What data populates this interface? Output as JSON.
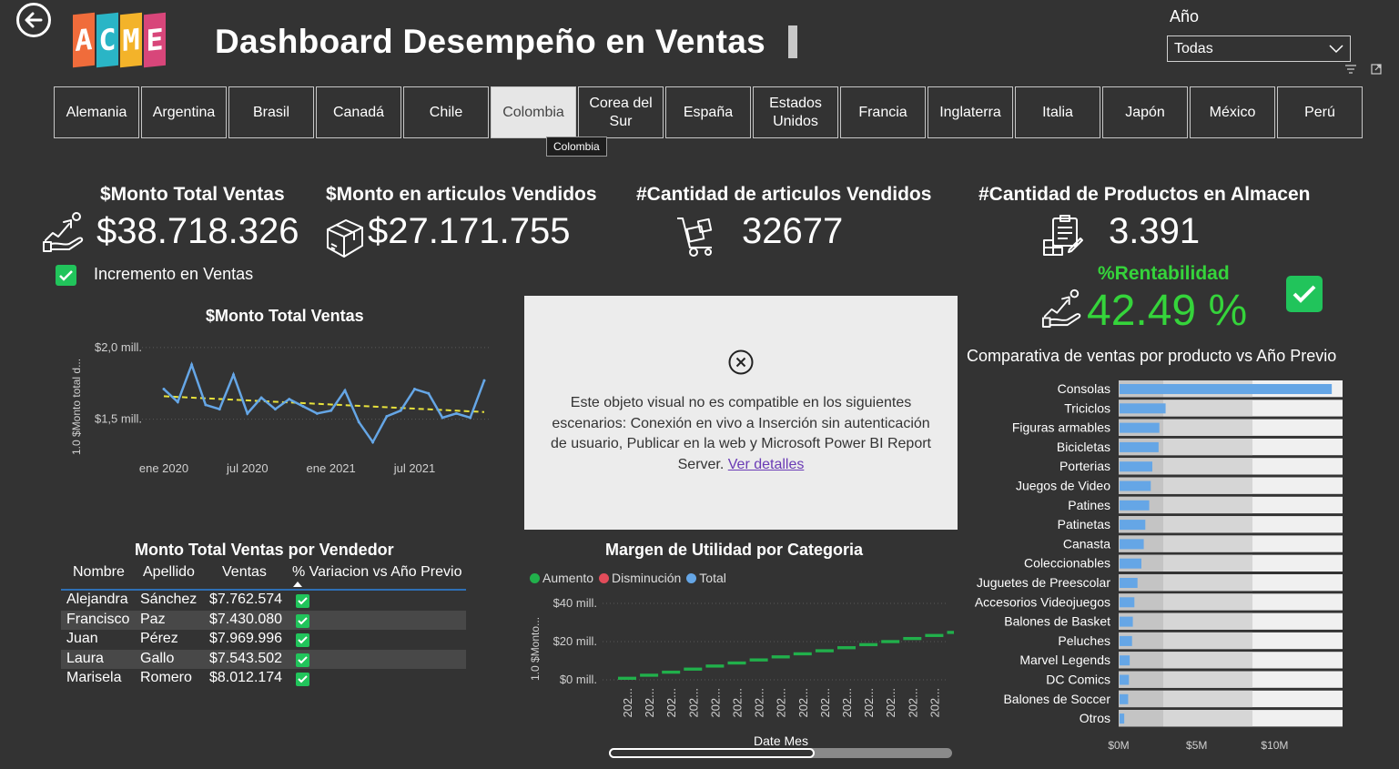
{
  "header": {
    "title": "Dashboard Desempeño en Ventas",
    "logo_letters": [
      "A",
      "C",
      "M",
      "E"
    ],
    "logo_colors": [
      "#f06c3b",
      "#2ab5c6",
      "#f3b32a",
      "#d8467a"
    ],
    "year_filter": {
      "label": "Año",
      "selected": "Todas"
    }
  },
  "countries": [
    "Alemania",
    "Argentina",
    "Brasil",
    "Canadá",
    "Chile",
    "Colombia",
    "Corea del Sur",
    "España",
    "Estados Unidos",
    "Francia",
    "Inglaterra",
    "Italia",
    "Japón",
    "México",
    "Perú"
  ],
  "active_country": "Colombia",
  "tooltip": "Colombia",
  "kpis": {
    "total_sales": {
      "title": "$Monto Total Ventas",
      "value": "$38.718.326"
    },
    "items_sold_amount": {
      "title": "$Monto en articulos Vendidos",
      "value": "$27.171.755"
    },
    "items_sold_count": {
      "title": "#Cantidad de articulos Vendidos",
      "value": "32677"
    },
    "stock": {
      "title": "#Cantidad de Productos en Almacen",
      "value": "3.391"
    },
    "profitability": {
      "title": "%Rentabilidad",
      "value": "42.49 %"
    },
    "sales_increase_label": "Incremento en Ventas"
  },
  "unsupported_visual": {
    "message": "Este objeto visual no es compatible en los siguientes escenarios: Conexión en vivo a Inserción sin autenticación de usuario, Publicar en la web y Microsoft Power BI Report Server.",
    "link": "Ver detalles"
  },
  "seller_table": {
    "title": "Monto Total Ventas por Vendedor",
    "columns": [
      "Nombre",
      "Apellido",
      "Ventas",
      "% Variacion vs Año Previo"
    ],
    "rows": [
      [
        "Alejandra",
        "Sánchez",
        "$7.762.574"
      ],
      [
        "Francisco",
        "Paz",
        "$7.430.080"
      ],
      [
        "Juan",
        "Pérez",
        "$7.969.996"
      ],
      [
        "Laura",
        "Gallo",
        "$7.543.502"
      ],
      [
        "Marisela",
        "Romero",
        "$8.012.174"
      ]
    ]
  },
  "chart_data": [
    {
      "type": "line",
      "title": "$Monto Total Ventas",
      "ylabel": "1.0 $Monto total d...",
      "y_ticks": [
        "$2,0 mill.",
        "$1,5 mill."
      ],
      "x_ticks": [
        "ene 2020",
        "jul 2020",
        "ene 2021",
        "jul 2021"
      ],
      "ylim": [
        1250000,
        2050000
      ],
      "values": [
        1710000,
        1620000,
        1880000,
        1600000,
        1570000,
        1810000,
        1540000,
        1650000,
        1570000,
        1640000,
        1590000,
        1540000,
        1560000,
        1700000,
        1480000,
        1340000,
        1520000,
        1560000,
        1710000,
        1680000,
        1510000,
        1540000,
        1510000,
        1770000
      ],
      "trend": [
        1660000,
        1550000
      ],
      "colors": {
        "line": "#65a6e6",
        "trend": "#e8e23c"
      }
    },
    {
      "type": "bar",
      "title": "Margen de Utilidad por Categoria",
      "legend": [
        "Aumento",
        "Disminución",
        "Total"
      ],
      "legend_colors": [
        "#21b04b",
        "#e24c5a",
        "#65a6e6"
      ],
      "ylabel": "1.0 $Monto...",
      "xlabel": "Date Mes",
      "y_ticks": [
        "$40 mill.",
        "$20 mill.",
        "$0 mill."
      ],
      "ylim": [
        0,
        40000000
      ],
      "x_ticks": [
        "202...",
        "202...",
        "202...",
        "202...",
        "202...",
        "202...",
        "202...",
        "202...",
        "202...",
        "202...",
        "202...",
        "202...",
        "202...",
        "202...",
        "202..."
      ],
      "values": [
        1600000,
        3200000,
        4800000,
        6400000,
        8000000,
        9600000,
        11200000,
        12800000,
        14400000,
        16000000,
        17600000,
        19200000,
        20800000,
        22400000,
        24000000,
        25600000
      ]
    },
    {
      "type": "bar",
      "orientation": "horizontal",
      "title": "Comparativa de ventas por producto vs Año Previo",
      "categories": [
        "Consolas",
        "Triciclos",
        "Figuras armables",
        "Bicicletas",
        "Porterias",
        "Juegos de Video",
        "Patines",
        "Patinetas",
        "Canasta",
        "Coleccionables",
        "Juguetes de Preescolar",
        "Accesorios Videojuegos",
        "Balones de Basket",
        "Peluches",
        "Marvel Legends",
        "DC Comics",
        "Balones de Soccer",
        "Otros"
      ],
      "values": [
        13600000,
        2950000,
        2550000,
        2500000,
        2100000,
        2000000,
        1900000,
        1650000,
        1550000,
        1400000,
        1150000,
        950000,
        850000,
        800000,
        650000,
        600000,
        550000,
        300000
      ],
      "x_ticks": [
        "$0M",
        "$5M",
        "$10M"
      ],
      "xlim": [
        0,
        14000000
      ],
      "colors": {
        "bar": "#65a6e6"
      }
    }
  ]
}
